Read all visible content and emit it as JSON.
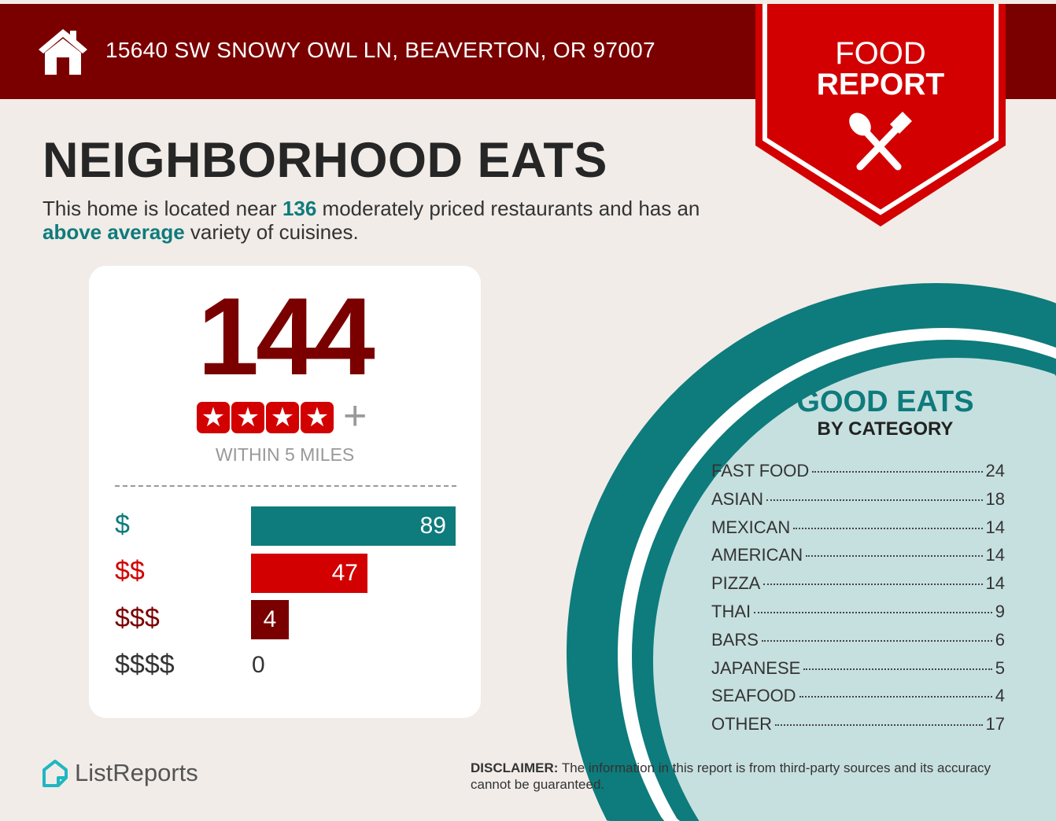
{
  "header": {
    "address": "15640 SW SNOWY OWL LN, BEAVERTON, OR 97007",
    "icon": "home-icon"
  },
  "badge": {
    "line1": "FOOD",
    "line2": "REPORT",
    "icon": "spoon-fork-icon"
  },
  "title": "NEIGHBORHOOD EATS",
  "intro": {
    "pre": "This home is located near ",
    "count": "136",
    "mid": " moderately priced restaurants and has an ",
    "variety": "above average",
    "post": " variety of cuisines."
  },
  "summary": {
    "total": "144",
    "rating_stars": 4,
    "rating_suffix": "+",
    "radius_label": "WITHIN 5 MILES",
    "price_levels": [
      {
        "label": "$",
        "count": "89",
        "color": "#0e7b7c"
      },
      {
        "label": "$$",
        "count": "47",
        "color": "#d20000"
      },
      {
        "label": "$$$",
        "count": "4",
        "color": "#7a0000"
      },
      {
        "label": "$$$$",
        "count": "0",
        "color": "#333333"
      }
    ]
  },
  "categories": {
    "title": "GOOD EATS",
    "subtitle": "BY CATEGORY",
    "items": [
      {
        "name": "FAST FOOD",
        "count": "24"
      },
      {
        "name": "ASIAN",
        "count": "18"
      },
      {
        "name": "MEXICAN",
        "count": "14"
      },
      {
        "name": "AMERICAN",
        "count": "14"
      },
      {
        "name": "PIZZA",
        "count": "14"
      },
      {
        "name": "THAI",
        "count": "9"
      },
      {
        "name": "BARS",
        "count": "6"
      },
      {
        "name": "JAPANESE",
        "count": "5"
      },
      {
        "name": "SEAFOOD",
        "count": "4"
      },
      {
        "name": "OTHER",
        "count": "17"
      }
    ]
  },
  "footer": {
    "brand": "ListReports",
    "disclaimer_label": "DISCLAIMER:",
    "disclaimer_text": " The information in this report is from third-party sources and its accuracy cannot be guaranteed."
  },
  "colors": {
    "dark_red": "#7a0000",
    "red": "#d20000",
    "teal": "#0e7b7c",
    "light_teal": "#c6e0df",
    "background": "#f1ece8"
  }
}
